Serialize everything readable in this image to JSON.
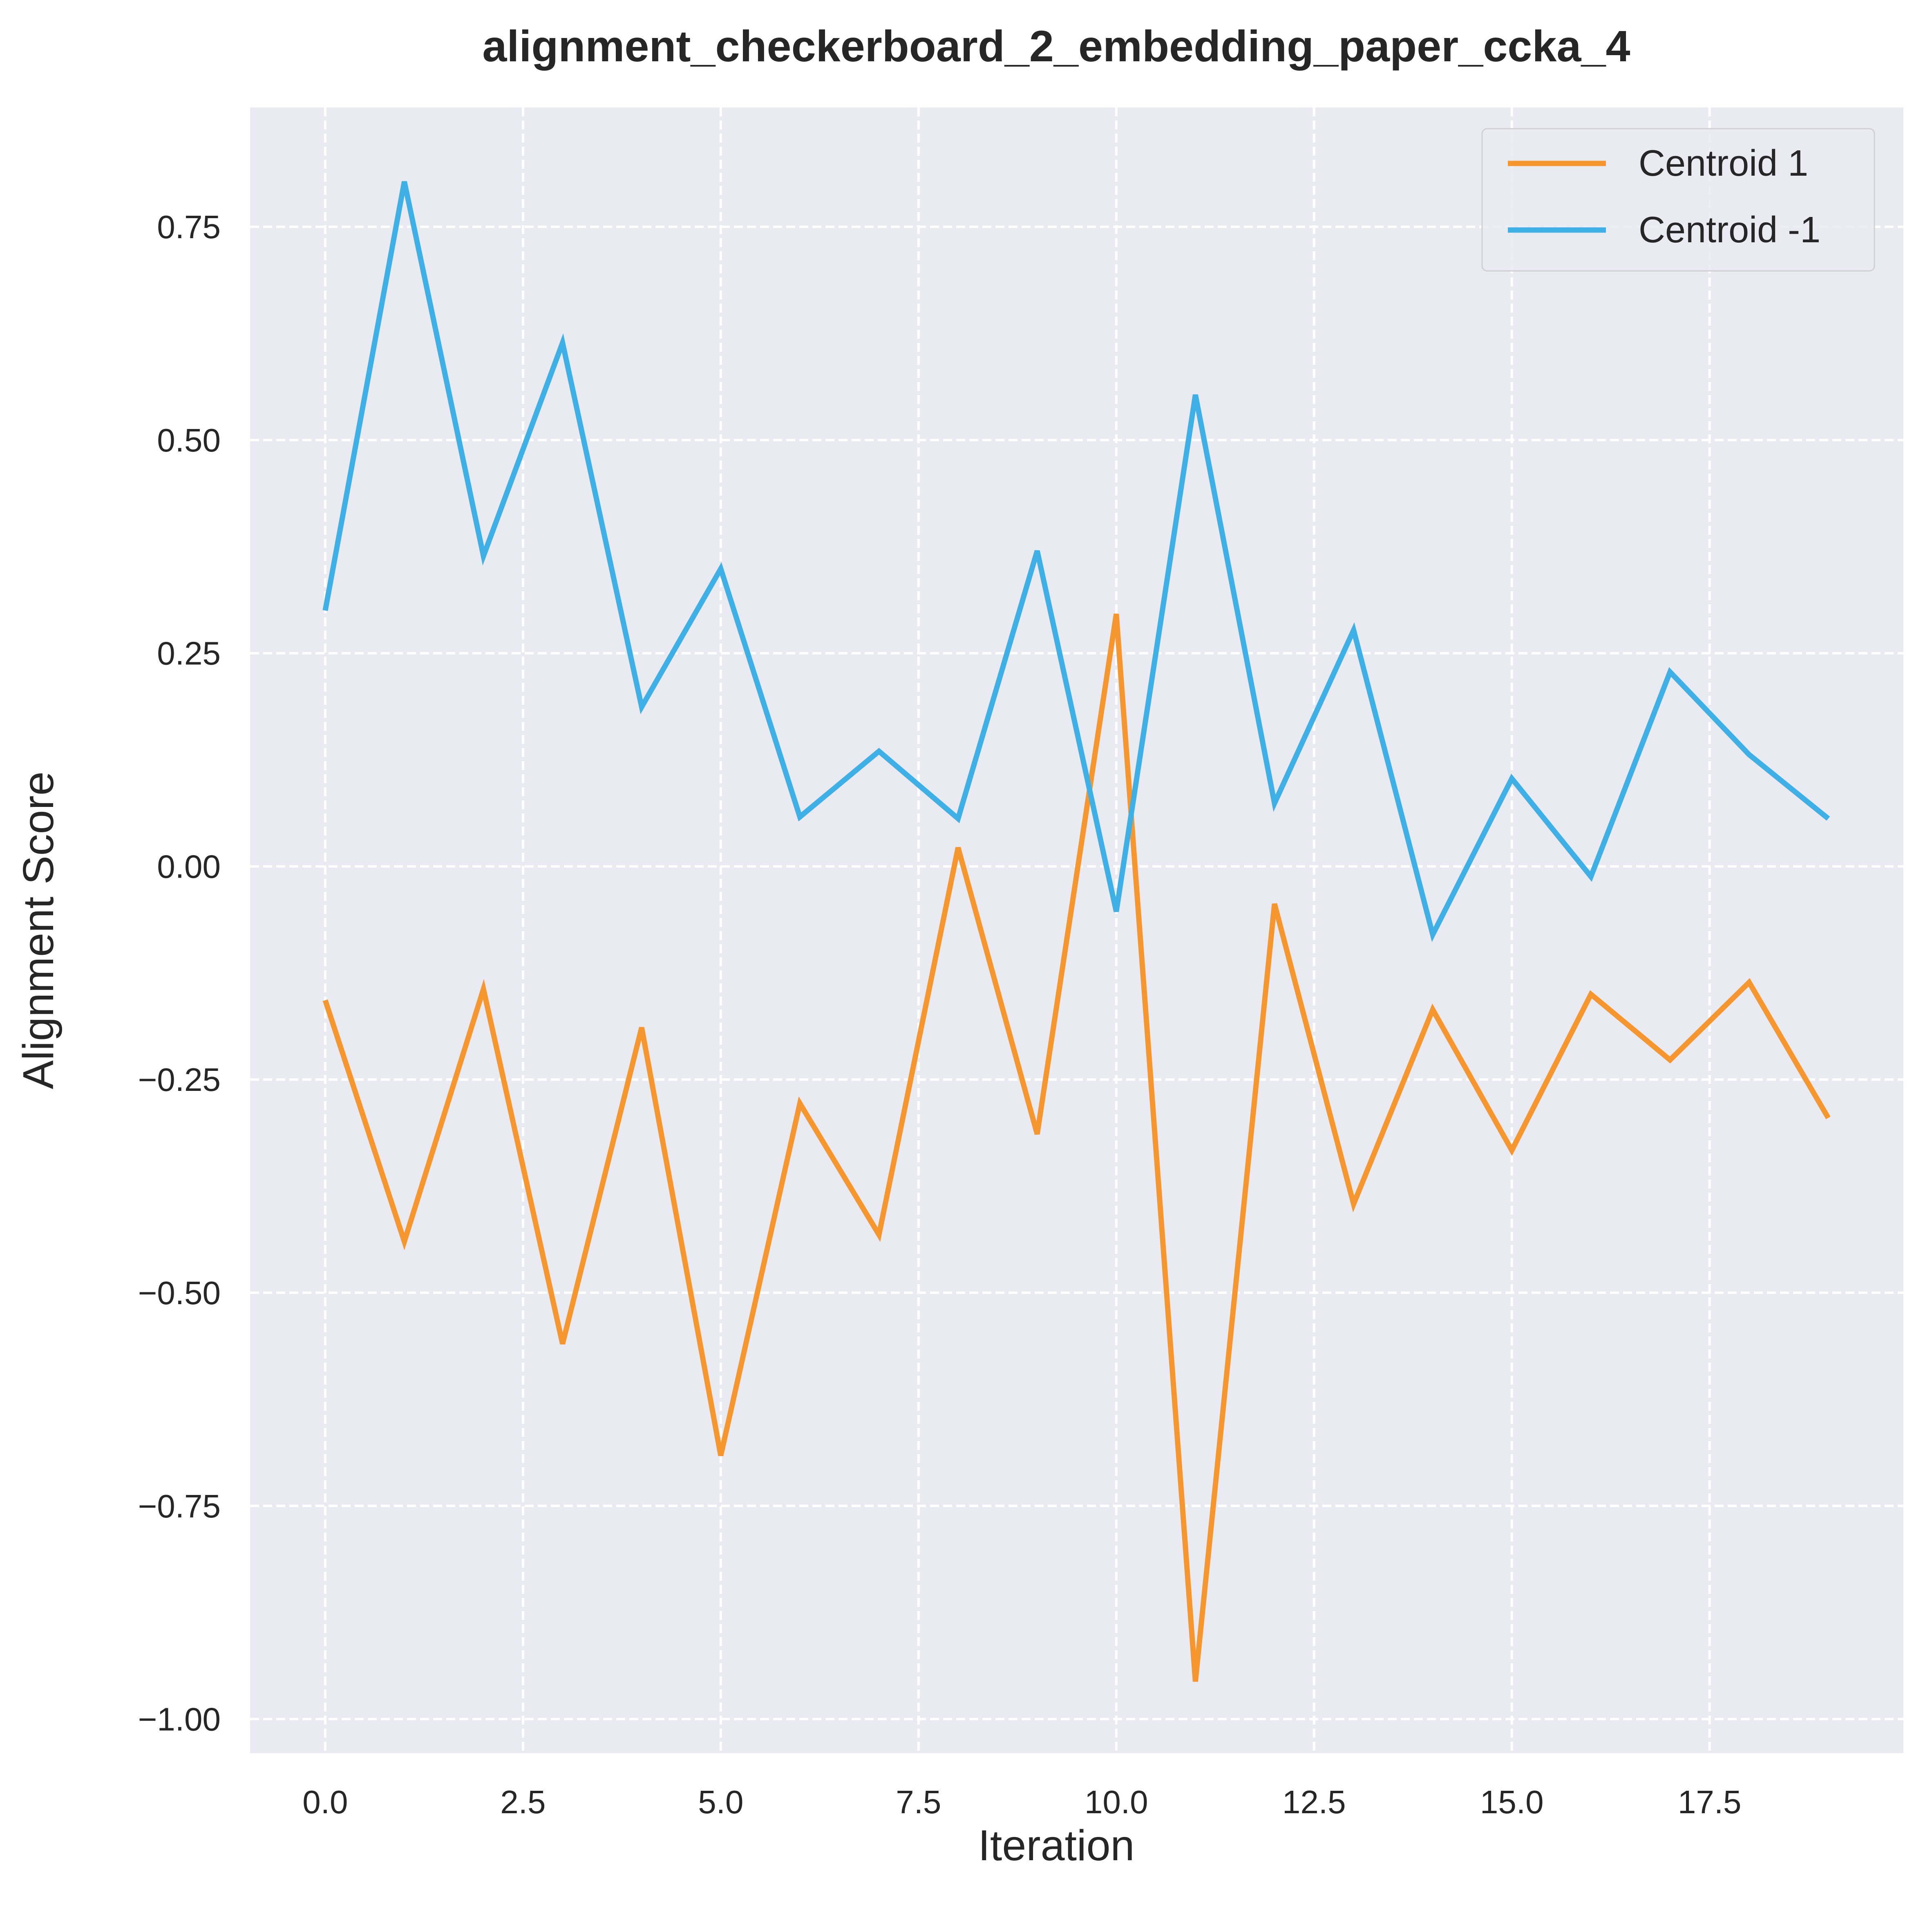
{
  "chart_data": {
    "type": "line",
    "title": "alignment_checkerboard_2_embedding_paper_ccka_4",
    "xlabel": "Iteration",
    "ylabel": "Alignment Score",
    "xlim": [
      -0.95,
      19.95
    ],
    "ylim": [
      -1.04,
      0.89
    ],
    "x_ticks": [
      0.0,
      2.5,
      5.0,
      7.5,
      10.0,
      12.5,
      15.0,
      17.5
    ],
    "x_tick_labels": [
      "0.0",
      "2.5",
      "5.0",
      "7.5",
      "10.0",
      "12.5",
      "15.0",
      "17.5"
    ],
    "y_ticks": [
      0.75,
      0.5,
      0.25,
      0.0,
      -0.25,
      -0.5,
      -0.75,
      -1.0
    ],
    "y_tick_labels": [
      "0.75",
      "0.50",
      "0.25",
      "0.00",
      "−0.25",
      "−0.50",
      "−0.75",
      "−1.00"
    ],
    "grid": true,
    "legend_position": "top-right",
    "x": [
      0,
      1,
      2,
      3,
      4,
      5,
      6,
      7,
      8,
      9,
      10,
      11,
      12,
      13,
      14,
      15,
      16,
      17,
      18,
      19
    ],
    "series": [
      {
        "name": "Centroid 1",
        "color": "#f5962f",
        "values": [
          -0.157,
          -0.44,
          -0.144,
          -0.56,
          -0.189,
          -0.691,
          -0.278,
          -0.432,
          0.022,
          -0.314,
          0.296,
          -0.956,
          -0.044,
          -0.396,
          -0.168,
          -0.333,
          -0.15,
          -0.227,
          -0.136,
          -0.295
        ]
      },
      {
        "name": "Centroid -1",
        "color": "#3fb0e6",
        "values": [
          0.3,
          0.803,
          0.364,
          0.614,
          0.187,
          0.349,
          0.058,
          0.135,
          0.056,
          0.37,
          -0.053,
          0.553,
          0.074,
          0.277,
          -0.08,
          0.103,
          -0.012,
          0.228,
          0.131,
          0.056
        ]
      }
    ]
  }
}
